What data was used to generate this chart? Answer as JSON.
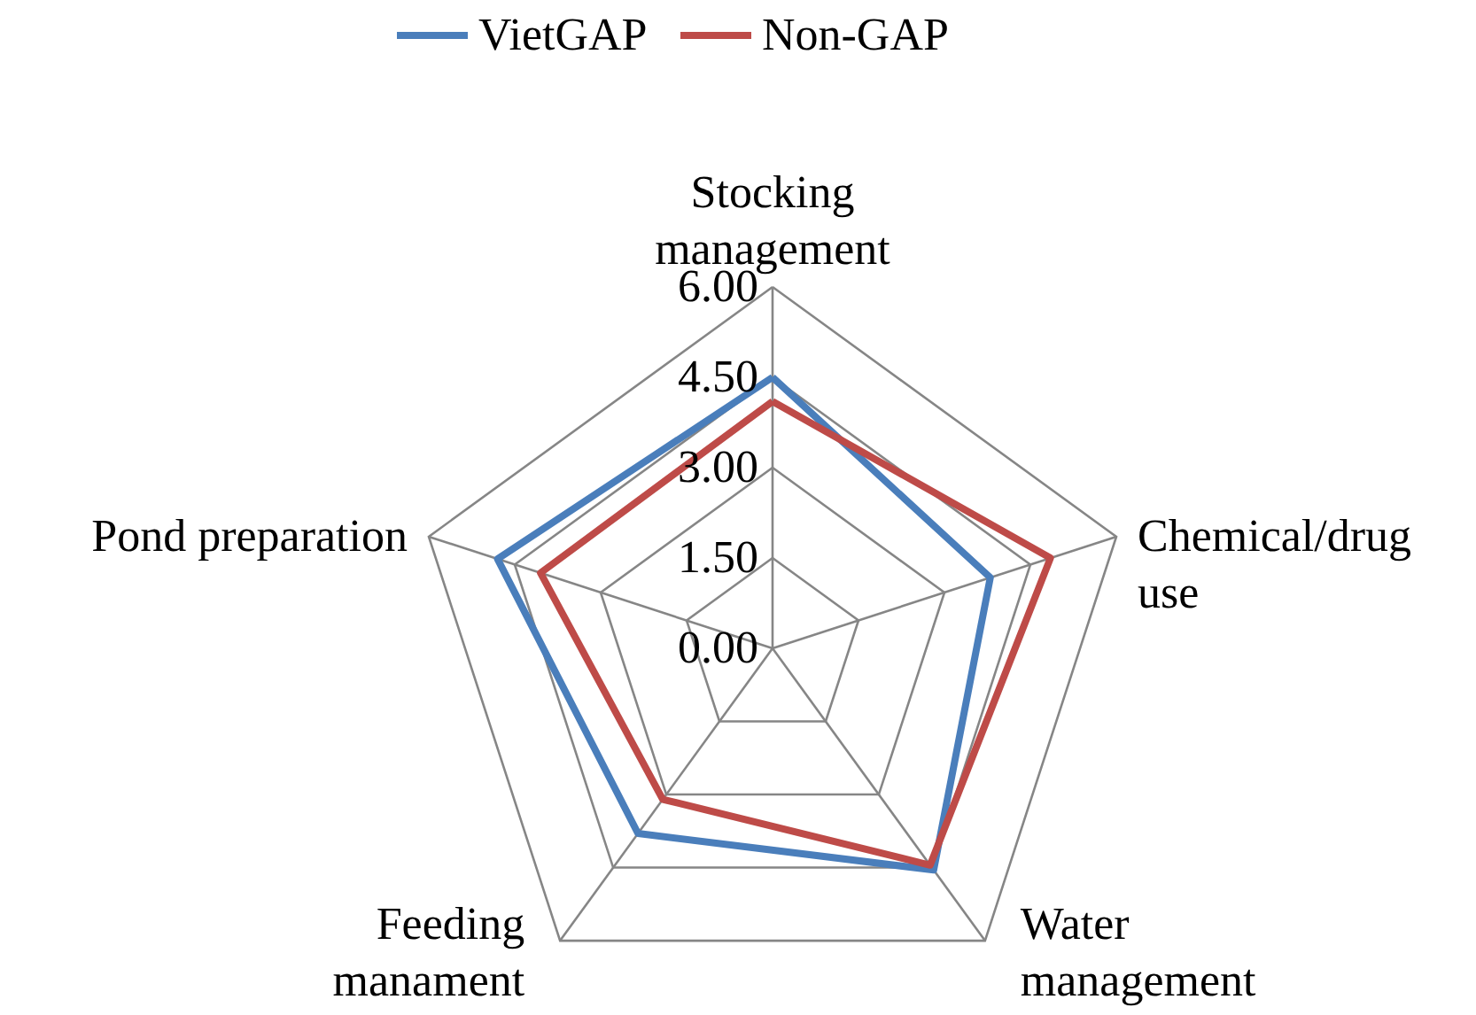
{
  "chart_data": {
    "type": "radar",
    "categories": [
      "Stocking management",
      "Chemical/drug use",
      "Water management",
      "Feeding manament",
      "Pond preparation"
    ],
    "series": [
      {
        "name": "VietGAP",
        "color": "#4a7ebb",
        "values": [
          4.5,
          3.8,
          4.55,
          3.8,
          4.8
        ]
      },
      {
        "name": "Non-GAP",
        "color": "#be4b48",
        "values": [
          4.1,
          4.85,
          4.45,
          3.1,
          4.05
        ]
      }
    ],
    "ylim": [
      0,
      6
    ],
    "yticks": [
      {
        "value": 0,
        "label": "0.00"
      },
      {
        "value": 1.5,
        "label": "1.50"
      },
      {
        "value": 3,
        "label": "3.00"
      },
      {
        "value": 4.5,
        "label": "4.50"
      },
      {
        "value": 6,
        "label": "6.00"
      }
    ],
    "grid": true,
    "legend": "top"
  }
}
